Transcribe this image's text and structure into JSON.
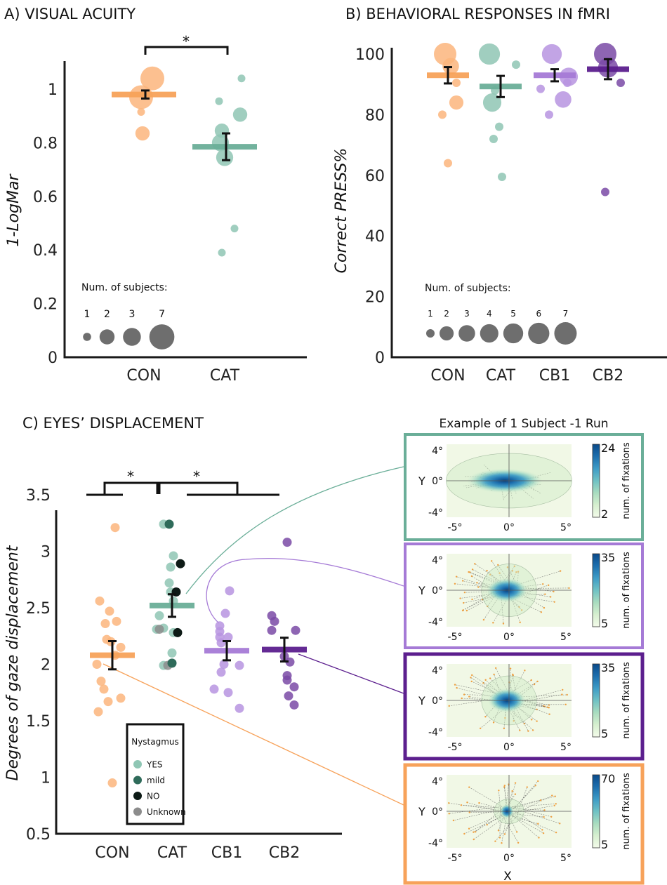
{
  "colors": {
    "CON": "#f7a25a",
    "CAT": "#6aae98",
    "CB1": "#a57ad6",
    "CB2": "#5c1f8e",
    "CON_pt": "#fcb57c",
    "CAT_pt": "#8fc6b4",
    "CB1_pt": "#b794e0",
    "CB2_pt": "#7a4aa6",
    "legend_gray": "#6e6e6e",
    "nyst_yes": "#8fc6b4",
    "nyst_mild": "#2f6b5a",
    "nyst_no": "#0d1a16",
    "nyst_unknown": "#8c8c8c"
  },
  "chart_data": [
    {
      "id": "A",
      "type": "scatter",
      "title": "A) VISUAL ACUITY",
      "xlabel": "",
      "ylabel": "1-LogMar",
      "ylim": [
        0,
        1.1
      ],
      "yticks": [
        0,
        0.2,
        0.4,
        0.6,
        0.8,
        1
      ],
      "ytick_labels": [
        "0",
        "0.2",
        "0.4",
        "0.6",
        "0.8",
        "1"
      ],
      "categories": [
        "CON",
        "CAT"
      ],
      "significance": [
        {
          "from": "CON",
          "to": "CAT",
          "label": "*"
        }
      ],
      "size_legend": {
        "title": "Num. of subjects:",
        "sizes": [
          1,
          2,
          3,
          7
        ],
        "labels": [
          "1",
          "2",
          "3",
          "7"
        ]
      },
      "groups": [
        {
          "name": "CON",
          "mean": 0.98,
          "err": 0.015,
          "points": [
            {
              "y": 1.04,
              "n": 7,
              "dx": 0.3
            },
            {
              "y": 0.97,
              "n": 7,
              "dx": -0.1
            },
            {
              "y": 0.915,
              "n": 1,
              "dx": -0.1
            },
            {
              "y": 0.835,
              "n": 2,
              "dx": -0.05
            }
          ]
        },
        {
          "name": "CAT",
          "mean": 0.785,
          "err": 0.05,
          "points": [
            {
              "y": 1.04,
              "n": 1,
              "dx": 0.6
            },
            {
              "y": 0.955,
              "n": 1,
              "dx": -0.2
            },
            {
              "y": 0.905,
              "n": 2,
              "dx": 0.55
            },
            {
              "y": 0.845,
              "n": 2,
              "dx": -0.1
            },
            {
              "y": 0.8,
              "n": 3,
              "dx": -0.15
            },
            {
              "y": 0.745,
              "n": 3,
              "dx": 0.0
            },
            {
              "y": 0.48,
              "n": 1,
              "dx": 0.35
            },
            {
              "y": 0.39,
              "n": 1,
              "dx": -0.1
            }
          ]
        }
      ]
    },
    {
      "id": "B",
      "type": "scatter",
      "title": "B) BEHAVIORAL RESPONSES IN fMRI",
      "xlabel": "",
      "ylabel": "Correct PRESS%",
      "ylim": [
        0,
        105
      ],
      "yticks": [
        0,
        20,
        40,
        60,
        80,
        100
      ],
      "ytick_labels": [
        "0",
        "20",
        "40",
        "60",
        "80",
        "100"
      ],
      "categories": [
        "CON",
        "CAT",
        "CB1",
        "CB2"
      ],
      "size_legend": {
        "title": "Num. of subjects:",
        "sizes": [
          1,
          2,
          3,
          4,
          5,
          6,
          7
        ],
        "labels": [
          "1",
          "2",
          "3",
          "4",
          "5",
          "6",
          "7"
        ]
      },
      "groups": [
        {
          "name": "CON",
          "mean": 93.0,
          "err": 2.7,
          "points": [
            {
              "y": 100,
              "n": 7,
              "dx": -0.1
            },
            {
              "y": 96,
              "n": 3,
              "dx": 0.1
            },
            {
              "y": 90.5,
              "n": 1,
              "dx": 0.3
            },
            {
              "y": 84,
              "n": 2,
              "dx": 0.3
            },
            {
              "y": 80,
              "n": 1,
              "dx": -0.2
            },
            {
              "y": 64,
              "n": 1,
              "dx": 0.0
            }
          ]
        },
        {
          "name": "CAT",
          "mean": 89.3,
          "err": 3.5,
          "points": [
            {
              "y": 100,
              "n": 6,
              "dx": -0.4
            },
            {
              "y": 96.5,
              "n": 1,
              "dx": 0.55
            },
            {
              "y": 88,
              "n": 1,
              "dx": -0.2
            },
            {
              "y": 84,
              "n": 4,
              "dx": -0.3
            },
            {
              "y": 76,
              "n": 1,
              "dx": -0.05
            },
            {
              "y": 72,
              "n": 1,
              "dx": -0.25
            },
            {
              "y": 59.5,
              "n": 1,
              "dx": 0.05
            }
          ]
        },
        {
          "name": "CB1",
          "mean": 93.0,
          "err": 2.0,
          "points": [
            {
              "y": 100,
              "n": 5,
              "dx": -0.1
            },
            {
              "y": 92.5,
              "n": 4,
              "dx": 0.5
            },
            {
              "y": 90.5,
              "n": 1,
              "dx": 0.45
            },
            {
              "y": 88.5,
              "n": 1,
              "dx": -0.5
            },
            {
              "y": 85,
              "n": 3,
              "dx": 0.3
            },
            {
              "y": 80,
              "n": 1,
              "dx": -0.2
            }
          ]
        },
        {
          "name": "CB2",
          "mean": 95.0,
          "err": 3.3,
          "points": [
            {
              "y": 100,
              "n": 7,
              "dx": -0.1
            },
            {
              "y": 95.5,
              "n": 5,
              "dx": 0.0
            },
            {
              "y": 90.5,
              "n": 1,
              "dx": 0.45
            },
            {
              "y": 54.5,
              "n": 1,
              "dx": -0.1
            }
          ]
        }
      ]
    },
    {
      "id": "C",
      "type": "scatter",
      "title": "C) EYES’ DISPLACEMENT",
      "xlabel": "",
      "ylabel": "Degrees of gaze displacement",
      "ylim": [
        0.5,
        3.5
      ],
      "yticks": [
        0.5,
        1,
        1.5,
        2,
        2.5,
        3,
        3.5
      ],
      "ytick_labels": [
        "0.5",
        "1",
        "1.5",
        "2",
        "2.5",
        "3",
        "3.5"
      ],
      "categories": [
        "CON",
        "CAT",
        "CB1",
        "CB2"
      ],
      "significance": [
        {
          "from": "CON",
          "to": "CAT",
          "label": "*"
        },
        {
          "from": "CAT",
          "to": "CB1+CB2",
          "label": "*"
        }
      ],
      "legend": {
        "title": "Nystagmus",
        "entries": [
          "YES",
          "mild",
          "NO",
          "Unknown"
        ]
      },
      "groups": [
        {
          "name": "CON",
          "mean": 2.08,
          "err": 0.125,
          "points": [
            {
              "y": 3.21,
              "dx": 0.1
            },
            {
              "y": 2.56,
              "dx": -0.45
            },
            {
              "y": 2.47,
              "dx": -0.1
            },
            {
              "y": 2.38,
              "dx": 0.15
            },
            {
              "y": 2.36,
              "dx": -0.25
            },
            {
              "y": 2.22,
              "dx": -0.2
            },
            {
              "y": 2.2,
              "dx": -0.05
            },
            {
              "y": 2.15,
              "dx": 0.3
            },
            {
              "y": 2.08,
              "dx": 0.1
            },
            {
              "y": 2.0,
              "dx": -0.55
            },
            {
              "y": 1.85,
              "dx": -0.4
            },
            {
              "y": 1.78,
              "dx": -0.3
            },
            {
              "y": 1.7,
              "dx": 0.3
            },
            {
              "y": 1.67,
              "dx": -0.15
            },
            {
              "y": 1.58,
              "dx": -0.5
            },
            {
              "y": 0.95,
              "dx": 0.0
            }
          ]
        },
        {
          "name": "CAT",
          "mean": 2.52,
          "err": 0.1,
          "points": [
            {
              "y": 3.24,
              "dx": -0.3,
              "ny": "YES"
            },
            {
              "y": 3.24,
              "dx": -0.1,
              "ny": "mild"
            },
            {
              "y": 2.96,
              "dx": 0.05,
              "ny": "YES"
            },
            {
              "y": 2.86,
              "dx": -0.05,
              "ny": "YES"
            },
            {
              "y": 2.89,
              "dx": 0.3,
              "ny": "NO"
            },
            {
              "y": 2.72,
              "dx": -0.1,
              "ny": "YES"
            },
            {
              "y": 2.64,
              "dx": -0.05,
              "ny": "YES"
            },
            {
              "y": 2.64,
              "dx": 0.15,
              "ny": "NO"
            },
            {
              "y": 2.56,
              "dx": 0.05,
              "ny": "YES"
            },
            {
              "y": 2.43,
              "dx": -0.45,
              "ny": "YES"
            },
            {
              "y": 2.31,
              "dx": -0.55,
              "ny": "YES"
            },
            {
              "y": 2.32,
              "dx": -0.3,
              "ny": "YES"
            },
            {
              "y": 2.31,
              "dx": -0.45,
              "ny": "Unknown"
            },
            {
              "y": 2.28,
              "dx": 0.05,
              "ny": "YES"
            },
            {
              "y": 2.28,
              "dx": 0.2,
              "ny": "NO"
            },
            {
              "y": 2.1,
              "dx": 0.0,
              "ny": "YES"
            },
            {
              "y": 1.99,
              "dx": -0.3,
              "ny": "YES"
            },
            {
              "y": 1.99,
              "dx": -0.15,
              "ny": "Unknown"
            },
            {
              "y": 2.01,
              "dx": 0.0,
              "ny": "mild"
            }
          ]
        },
        {
          "name": "CB1",
          "mean": 2.12,
          "err": 0.085,
          "points": [
            {
              "y": 2.65,
              "dx": 0.1,
              "ny": ""
            },
            {
              "y": 2.45,
              "dx": -0.05,
              "ny": ""
            },
            {
              "y": 2.34,
              "dx": -0.25,
              "ny": ""
            },
            {
              "y": 2.29,
              "dx": -0.25,
              "ny": ""
            },
            {
              "y": 2.24,
              "dx": -0.25,
              "ny": ""
            },
            {
              "y": 2.24,
              "dx": 0.05,
              "ny": ""
            },
            {
              "y": 2.19,
              "dx": -0.2,
              "ny": ""
            },
            {
              "y": 2.0,
              "dx": -0.1,
              "ny": ""
            },
            {
              "y": 1.99,
              "dx": 0.45,
              "ny": ""
            },
            {
              "y": 1.93,
              "dx": -0.2,
              "ny": ""
            },
            {
              "y": 1.78,
              "dx": -0.45,
              "ny": ""
            },
            {
              "y": 1.75,
              "dx": 0.05,
              "ny": ""
            },
            {
              "y": 1.61,
              "dx": 0.45,
              "ny": ""
            }
          ]
        },
        {
          "name": "CB2",
          "mean": 2.13,
          "err": 0.105,
          "points": [
            {
              "y": 3.08,
              "dx": 0.1,
              "ny": ""
            },
            {
              "y": 2.43,
              "dx": -0.45,
              "ny": ""
            },
            {
              "y": 2.38,
              "dx": -0.35,
              "ny": ""
            },
            {
              "y": 2.3,
              "dx": -0.45,
              "ny": ""
            },
            {
              "y": 2.3,
              "dx": 0.4,
              "ny": ""
            },
            {
              "y": 2.07,
              "dx": 0.0,
              "ny": ""
            },
            {
              "y": 2.02,
              "dx": 0.2,
              "ny": ""
            },
            {
              "y": 1.9,
              "dx": 0.1,
              "ny": ""
            },
            {
              "y": 1.86,
              "dx": 0.1,
              "ny": ""
            },
            {
              "y": 1.8,
              "dx": 0.35,
              "ny": ""
            },
            {
              "y": 1.72,
              "dx": 0.15,
              "ny": ""
            },
            {
              "y": 1.64,
              "dx": 0.35,
              "ny": ""
            }
          ]
        }
      ]
    },
    {
      "id": "C-heatmaps",
      "type": "heatmap",
      "title": "Example of 1 Subject -1 Run",
      "xlabel": "X",
      "ylabel": "Y",
      "xticks": [
        "-5°",
        "0°",
        "5°"
      ],
      "yticks": [
        "4°",
        "0°",
        "-4°"
      ],
      "colorbar_label": "num. of fixations",
      "panels": [
        {
          "group": "CAT",
          "cmin": 2,
          "cmax": 24,
          "spread_x": 0.48,
          "spread_y": 0.22,
          "core_x": 0.22,
          "core_y": 0.12,
          "shape": "ellipse-wide",
          "saccade_lines": false
        },
        {
          "group": "CB1",
          "cmin": 5,
          "cmax": 35,
          "spread_x": 0.22,
          "spread_y": 0.3,
          "core_x": 0.12,
          "core_y": 0.12,
          "shape": "oval",
          "saccade_lines": true
        },
        {
          "group": "CB2",
          "cmin": 5,
          "cmax": 35,
          "spread_x": 0.22,
          "spread_y": 0.28,
          "core_x": 0.11,
          "core_y": 0.12,
          "shape": "oval",
          "saccade_lines": true
        },
        {
          "group": "CON",
          "cmin": 5,
          "cmax": 70,
          "spread_x": 0.12,
          "spread_y": 0.14,
          "core_x": 0.04,
          "core_y": 0.07,
          "shape": "dot",
          "saccade_lines": true
        }
      ]
    }
  ]
}
